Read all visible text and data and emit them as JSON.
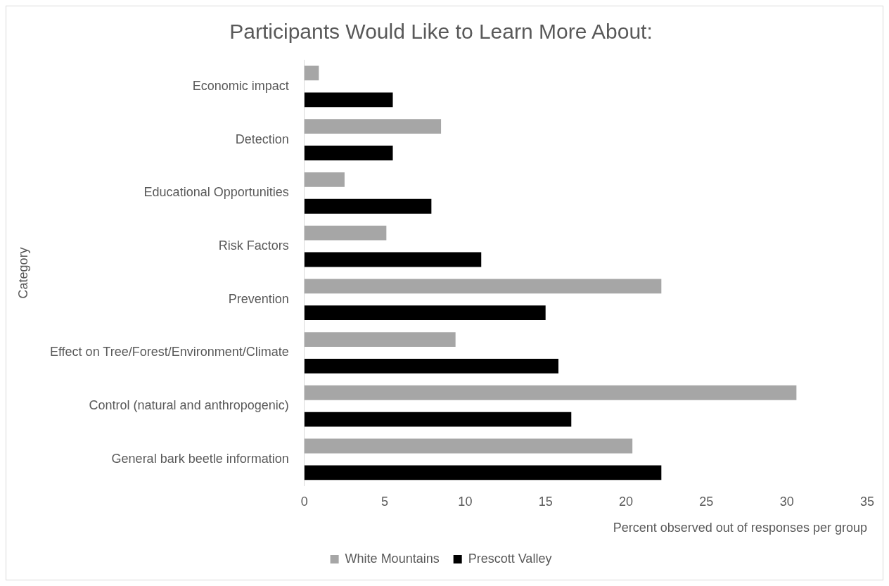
{
  "chart_data": {
    "type": "bar",
    "orientation": "horizontal",
    "title": "Participants Would Like to Learn More About:",
    "xlabel": "Percent observed out of responses per group",
    "ylabel": "Category",
    "categories": [
      "Economic impact",
      "Detection",
      "Educational Opportunities",
      "Risk Factors",
      "Prevention",
      "Effect on Tree/Forest/Environment/Climate",
      "Control (natural and anthropogenic)",
      "General bark beetle information"
    ],
    "series": [
      {
        "name": "White Mountains",
        "color": "#a6a6a6",
        "values": [
          0.9,
          8.5,
          2.5,
          5.1,
          22.2,
          9.4,
          30.6,
          20.4
        ]
      },
      {
        "name": "Prescott Valley",
        "color": "#000000",
        "values": [
          5.5,
          5.5,
          7.9,
          11.0,
          15.0,
          15.8,
          16.6,
          22.2
        ]
      }
    ],
    "xlim": [
      0,
      35
    ],
    "xticks": [
      0,
      5,
      10,
      15,
      20,
      25,
      30,
      35
    ],
    "grid": false,
    "legend": "bottom"
  }
}
